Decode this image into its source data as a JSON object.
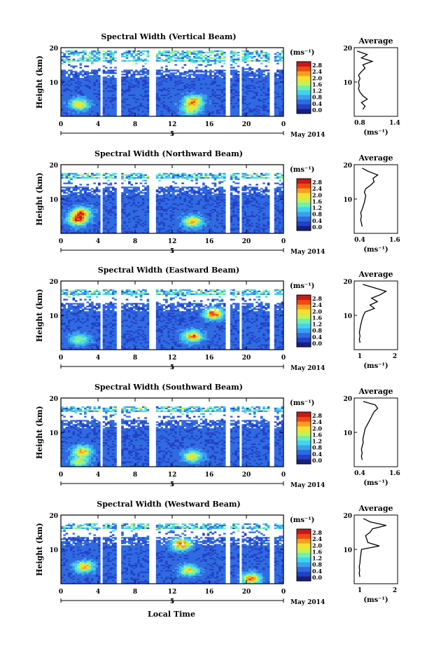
{
  "figure": {
    "xlabel": "Local Time",
    "colorbar_unit": "(ms⁻¹)",
    "colorbar_ticks": [
      "2.8",
      "2.4",
      "2.0",
      "1.6",
      "1.2",
      "0.8",
      "0.4",
      "0.0"
    ],
    "time_ticks": [
      "0",
      "4",
      "8",
      "12",
      "16",
      "20",
      "0"
    ],
    "height_ticks": [
      "20",
      "10"
    ],
    "y_label": "Height (km)",
    "date_label": "May 2014",
    "day_label": "5",
    "avg_title": "Average",
    "avg_unit": "(ms⁻¹)",
    "colors": {
      "colormap": [
        "#1a1e7a",
        "#2340c8",
        "#2f6ae0",
        "#3aa0ee",
        "#41d4f0",
        "#6ff0b0",
        "#c8f050",
        "#f5e030",
        "#f5a020",
        "#f04a10",
        "#c81818"
      ],
      "gaps": "#ffffff",
      "background_data": "#2d45c8"
    }
  },
  "chart_data": [
    {
      "type": "heatmap",
      "title": "Spectral Width (Vertical Beam)",
      "xlabel": "Local Time",
      "ylabel": "Height (km)",
      "xlim": [
        0,
        24
      ],
      "ylim": [
        0,
        20
      ],
      "colorbar": {
        "label": "(ms⁻¹)",
        "range": [
          0.0,
          3.0
        ]
      },
      "gaps_hours": [
        [
          4.2,
          4.6
        ],
        [
          5.9,
          6.6
        ],
        [
          9.6,
          10.3
        ],
        [
          17.7,
          18.3
        ],
        [
          19.2,
          19.5
        ],
        [
          22.6,
          22.9
        ]
      ],
      "data_top_km": 19.2,
      "features": [
        {
          "x": 2.0,
          "y": 3.5,
          "level": 1.9
        },
        {
          "x": 14.3,
          "y": 4.5,
          "level": 2.2
        },
        {
          "x": 14.0,
          "y": 2.0,
          "level": 1.6
        }
      ],
      "profile": {
        "xlim": [
          0.8,
          1.4
        ],
        "xticks": [
          "0.8",
          "1.4"
        ],
        "yticks": [
          "20",
          "10"
        ],
        "heights": [
          2,
          3,
          4,
          5,
          6,
          7,
          8,
          9,
          10,
          11,
          12,
          13,
          14,
          15,
          16,
          17,
          18,
          19
        ],
        "values": [
          0.92,
          0.95,
          0.9,
          0.98,
          0.92,
          0.88,
          0.86,
          0.87,
          0.86,
          0.88,
          0.86,
          0.9,
          0.95,
          0.92,
          1.05,
          0.9,
          0.98,
          0.84
        ]
      }
    },
    {
      "type": "heatmap",
      "title": "Spectral Width (Northward Beam)",
      "xlabel": "Local Time",
      "ylabel": "Height (km)",
      "xlim": [
        0,
        24
      ],
      "ylim": [
        0,
        20
      ],
      "colorbar": {
        "label": "(ms⁻¹)",
        "range": [
          0.0,
          3.0
        ]
      },
      "gaps_hours": [
        [
          4.2,
          4.6
        ],
        [
          5.9,
          6.6
        ],
        [
          9.6,
          10.3
        ],
        [
          17.7,
          18.3
        ],
        [
          19.2,
          19.5
        ],
        [
          22.6,
          22.9
        ]
      ],
      "data_top_km": 17.5,
      "features": [
        {
          "x": 1.8,
          "y": 4.0,
          "level": 2.4
        },
        {
          "x": 2.2,
          "y": 6.0,
          "level": 2.2
        },
        {
          "x": 14.2,
          "y": 3.5,
          "level": 2.1
        }
      ],
      "profile": {
        "xlim": [
          0.4,
          1.6
        ],
        "xticks": [
          "0.4",
          "1.6"
        ],
        "yticks": [
          "20",
          "10"
        ],
        "heights": [
          2,
          3,
          4,
          5,
          6,
          7,
          8,
          9,
          10,
          11,
          12,
          13,
          14,
          15,
          16,
          17,
          18,
          19
        ],
        "values": [
          0.62,
          0.6,
          0.58,
          0.6,
          0.58,
          0.62,
          0.65,
          0.68,
          0.7,
          0.72,
          0.68,
          0.72,
          0.85,
          0.95,
          0.92,
          1.05,
          0.8,
          0.62
        ]
      }
    },
    {
      "type": "heatmap",
      "title": "Spectral Width (Eastward Beam)",
      "xlabel": "Local Time",
      "ylabel": "Height (km)",
      "xlim": [
        0,
        24
      ],
      "ylim": [
        0,
        20
      ],
      "colorbar": {
        "label": "(ms⁻¹)",
        "range": [
          0.0,
          3.0
        ]
      },
      "gaps_hours": [
        [
          4.2,
          4.6
        ],
        [
          5.9,
          6.6
        ],
        [
          9.6,
          10.3
        ],
        [
          17.7,
          18.3
        ],
        [
          19.2,
          19.5
        ],
        [
          22.6,
          22.9
        ]
      ],
      "data_top_km": 17.5,
      "features": [
        {
          "x": 14.2,
          "y": 4.0,
          "level": 2.4
        },
        {
          "x": 2.0,
          "y": 3.0,
          "level": 1.4
        },
        {
          "x": 16.5,
          "y": 10.5,
          "level": 2.6
        }
      ],
      "profile": {
        "xlim": [
          0.5,
          2.0
        ],
        "xticks": [
          "1",
          "2"
        ],
        "yticks": [
          "20",
          "10"
        ],
        "heights": [
          2,
          3,
          4,
          5,
          6,
          7,
          8,
          9,
          10,
          11,
          12,
          13,
          14,
          15,
          16,
          17,
          18,
          19
        ],
        "values": [
          0.7,
          0.68,
          0.7,
          0.68,
          0.7,
          0.72,
          0.75,
          0.78,
          0.82,
          0.88,
          1.2,
          1.05,
          1.3,
          1.1,
          1.4,
          1.6,
          1.2,
          0.8
        ]
      }
    },
    {
      "type": "heatmap",
      "title": "Spectral Width (Southward Beam)",
      "xlabel": "Local Time",
      "ylabel": "Height (km)",
      "xlim": [
        0,
        24
      ],
      "ylim": [
        0,
        20
      ],
      "colorbar": {
        "label": "(ms⁻¹)",
        "range": [
          0.0,
          3.0
        ]
      },
      "gaps_hours": [
        [
          4.2,
          4.6
        ],
        [
          5.9,
          6.6
        ],
        [
          9.6,
          10.3
        ],
        [
          17.7,
          18.3
        ],
        [
          19.2,
          19.5
        ],
        [
          22.6,
          22.9
        ]
      ],
      "data_top_km": 17.5,
      "features": [
        {
          "x": 2.3,
          "y": 4.5,
          "level": 2.1
        },
        {
          "x": 14.2,
          "y": 3.0,
          "level": 1.9
        },
        {
          "x": 2.0,
          "y": 1.5,
          "level": 1.5
        }
      ],
      "profile": {
        "xlim": [
          0.4,
          1.6
        ],
        "xticks": [
          "0.4",
          "1.6"
        ],
        "yticks": [
          "20",
          "10"
        ],
        "heights": [
          2,
          3,
          4,
          5,
          6,
          7,
          8,
          9,
          10,
          11,
          12,
          13,
          14,
          15,
          16,
          17,
          18,
          19
        ],
        "values": [
          0.62,
          0.6,
          0.62,
          0.6,
          0.62,
          0.65,
          0.64,
          0.66,
          0.68,
          0.7,
          0.75,
          0.8,
          0.85,
          0.9,
          0.95,
          1.05,
          0.98,
          0.65
        ]
      }
    },
    {
      "type": "heatmap",
      "title": "Spectral Width (Westward Beam)",
      "xlabel": "Local Time",
      "ylabel": "Height (km)",
      "xlim": [
        0,
        24
      ],
      "ylim": [
        0,
        20
      ],
      "colorbar": {
        "label": "(ms⁻¹)",
        "range": [
          0.0,
          3.0
        ]
      },
      "gaps_hours": [
        [
          4.2,
          4.6
        ],
        [
          5.9,
          6.6
        ],
        [
          9.6,
          10.3
        ],
        [
          17.7,
          18.3
        ],
        [
          19.2,
          19.5
        ],
        [
          22.6,
          22.9
        ]
      ],
      "data_top_km": 17.5,
      "features": [
        {
          "x": 2.5,
          "y": 5.0,
          "level": 2.2
        },
        {
          "x": 13.8,
          "y": 4.0,
          "level": 1.8
        },
        {
          "x": 13.0,
          "y": 11.5,
          "level": 2.6
        },
        {
          "x": 20.5,
          "y": 1.5,
          "level": 2.4
        }
      ],
      "profile": {
        "xlim": [
          0.5,
          2.4
        ],
        "xticks": [
          "1",
          "2"
        ],
        "yticks": [
          "20",
          "10"
        ],
        "heights": [
          2,
          3,
          4,
          5,
          6,
          7,
          8,
          9,
          10,
          11,
          12,
          13,
          14,
          15,
          16,
          17,
          18,
          19
        ],
        "values": [
          0.75,
          0.72,
          0.74,
          0.72,
          0.75,
          0.76,
          0.78,
          0.8,
          0.82,
          1.6,
          1.1,
          1.05,
          1.0,
          1.2,
          1.3,
          1.9,
          1.2,
          0.9
        ]
      }
    }
  ]
}
